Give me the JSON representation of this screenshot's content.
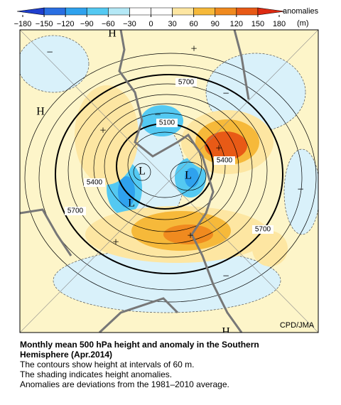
{
  "colorbar": {
    "title": "anomalies",
    "unit": "(m)",
    "ticks": [
      {
        "value": -180,
        "label": "−180"
      },
      {
        "value": -150,
        "label": "−150"
      },
      {
        "value": -120,
        "label": "−120"
      },
      {
        "value": -90,
        "label": "−90"
      },
      {
        "value": -60,
        "label": "−60"
      },
      {
        "value": -30,
        "label": "−30"
      },
      0,
      30,
      60,
      90,
      120,
      150,
      180
    ],
    "colors": [
      "#1f3fce",
      "#2a6fe2",
      "#2fa2ee",
      "#54c9f2",
      "#b4e8f6",
      "#ffffff",
      "#ffffff",
      "#fde6a2",
      "#f6b93a",
      "#f08a1f",
      "#e85a16",
      "#dd2a12"
    ]
  },
  "map": {
    "markers": [
      "H",
      "H",
      "H",
      "L",
      "L",
      "L",
      "+",
      "+",
      "+",
      "+",
      "+",
      "−",
      "−",
      "−",
      "−",
      "−"
    ],
    "contour_labels": [
      "5700",
      "5100",
      "5400",
      "5400",
      "5700",
      "5700"
    ],
    "credit": "CPD/JMA"
  },
  "caption": {
    "title": "Monthly mean 500 hPa height and anomaly in the Southern Hemisphere (Apr.2014)",
    "lines": [
      "The contours show height at intervals of 60 m.",
      "The shading indicates height anomalies.",
      "Anomalies are deviations from the 1981–2010 average."
    ]
  }
}
